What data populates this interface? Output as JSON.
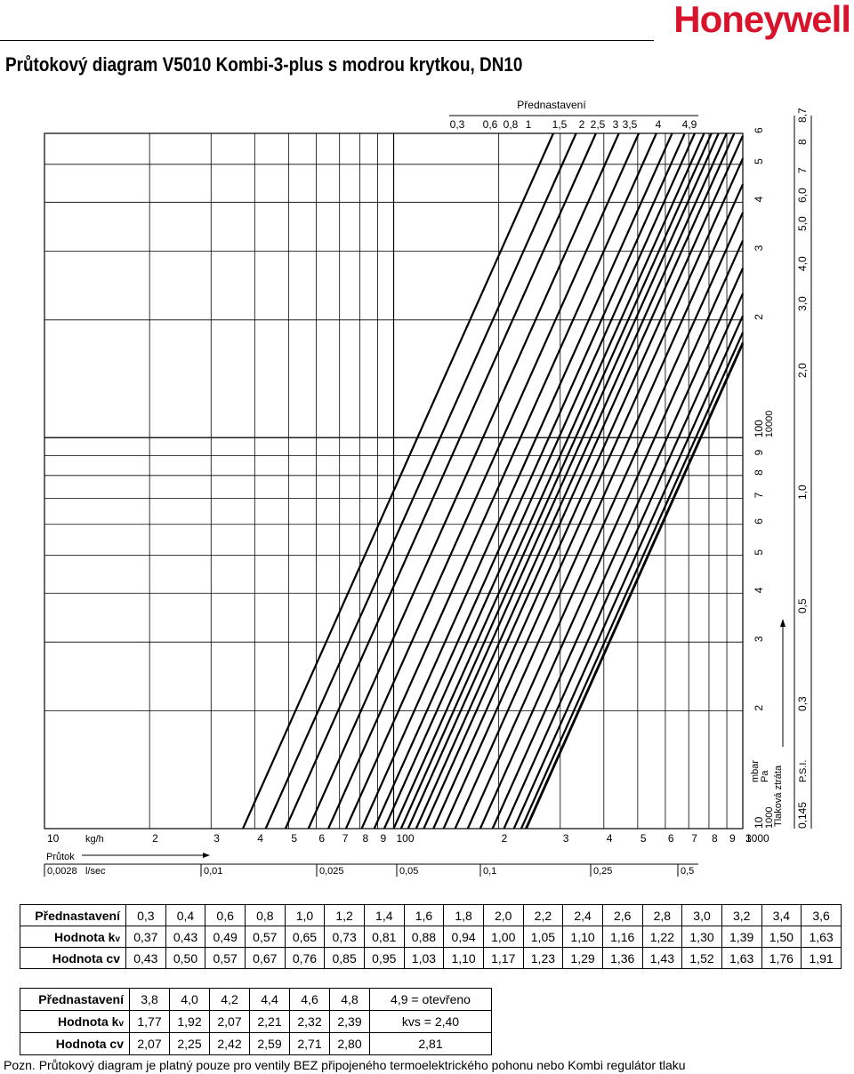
{
  "header": {
    "brand": "Honeywell",
    "title": "Průtokový diagram V5010 Kombi-3-plus s modrou krytkou, DN10"
  },
  "chart_data": {
    "type": "line",
    "title": "Průtokový diagram V5010 Kombi-3-plus s modrou krytkou, DN10",
    "top_label": "Přednastavení",
    "top_ticks": [
      "0,3",
      "0,6",
      "0,8",
      "1",
      "1,5",
      "2",
      "2,5",
      "3",
      "3,5",
      "4",
      "4,9"
    ],
    "xlabel": "Průtok",
    "ylabel": "Tlaková ztráta",
    "x_unit_1": "kg/h",
    "x_unit_2": "l/sec",
    "x_axis_kgh_ticks": [
      "10",
      "2",
      "3",
      "4",
      "5",
      "6",
      "7",
      "8",
      "9",
      "100",
      "2",
      "3",
      "4",
      "5",
      "6",
      "7",
      "8",
      "9",
      "1000",
      "3"
    ],
    "x_axis_ls_ticks": [
      "0,0028",
      "0,01",
      "0,025",
      "0,05",
      "0,1",
      "0,25",
      "0,5"
    ],
    "y_axis_mbar_ticks": [
      "10",
      "2",
      "3",
      "4",
      "5",
      "6",
      "7",
      "8",
      "9",
      "100",
      "2",
      "3",
      "4",
      "5",
      "6"
    ],
    "y_axis_pa_ticks": [
      "1000",
      "10000"
    ],
    "y_axis_psi_ticks": [
      "0,145",
      "0,3",
      "0,5",
      "1,0",
      "2,0",
      "3,0",
      "4,0",
      "5,0",
      "6,0",
      "7",
      "8",
      "8,7"
    ],
    "y_units": [
      "mbar",
      "Pa",
      "P.S.I."
    ],
    "x_range_kgh": [
      10,
      1000
    ],
    "y_range_mbar": [
      10,
      600
    ],
    "log_scale": true,
    "grid": true,
    "series": [
      {
        "name": "0,3",
        "kv": 0.37
      },
      {
        "name": "0,4",
        "kv": 0.43
      },
      {
        "name": "0,6",
        "kv": 0.49
      },
      {
        "name": "0,8",
        "kv": 0.57
      },
      {
        "name": "1,0",
        "kv": 0.65
      },
      {
        "name": "1,2",
        "kv": 0.73
      },
      {
        "name": "1,4",
        "kv": 0.81
      },
      {
        "name": "1,6",
        "kv": 0.88
      },
      {
        "name": "1,8",
        "kv": 0.94
      },
      {
        "name": "2,0",
        "kv": 1.0
      },
      {
        "name": "2,2",
        "kv": 1.05
      },
      {
        "name": "2,4",
        "kv": 1.1
      },
      {
        "name": "2,6",
        "kv": 1.16
      },
      {
        "name": "2,8",
        "kv": 1.22
      },
      {
        "name": "3,0",
        "kv": 1.3
      },
      {
        "name": "3,2",
        "kv": 1.39
      },
      {
        "name": "3,4",
        "kv": 1.5
      },
      {
        "name": "3,6",
        "kv": 1.63
      },
      {
        "name": "3,8",
        "kv": 1.77
      },
      {
        "name": "4,0",
        "kv": 1.92
      },
      {
        "name": "4,2",
        "kv": 2.07
      },
      {
        "name": "4,4",
        "kv": 2.21
      },
      {
        "name": "4,6",
        "kv": 2.32
      },
      {
        "name": "4,8",
        "kv": 2.39
      },
      {
        "name": "4,9",
        "kv": 2.4
      }
    ]
  },
  "table1": {
    "rows": [
      {
        "label": "Přednastavení",
        "values": [
          "0,3",
          "0,4",
          "0,6",
          "0,8",
          "1,0",
          "1,2",
          "1,4",
          "1,6",
          "1,8",
          "2,0",
          "2,2",
          "2,4",
          "2,6",
          "2,8",
          "3,0",
          "3,2",
          "3,4",
          "3,6"
        ]
      },
      {
        "label": "Hodnota k",
        "sub": "v",
        "values": [
          "0,37",
          "0,43",
          "0,49",
          "0,57",
          "0,65",
          "0,73",
          "0,81",
          "0,88",
          "0,94",
          "1,00",
          "1,05",
          "1,10",
          "1,16",
          "1,22",
          "1,30",
          "1,39",
          "1,50",
          "1,63"
        ]
      },
      {
        "label": "Hodnota cv",
        "values": [
          "0,43",
          "0,50",
          "0,57",
          "0,67",
          "0,76",
          "0,85",
          "0,95",
          "1,03",
          "1,10",
          "1,17",
          "1,23",
          "1,29",
          "1,36",
          "1,43",
          "1,52",
          "1,63",
          "1,76",
          "1,91"
        ]
      }
    ]
  },
  "table2": {
    "rows": [
      {
        "label": "Přednastavení",
        "values": [
          "3,8",
          "4,0",
          "4,2",
          "4,4",
          "4,6",
          "4,8"
        ],
        "last": "4,9 = otevřeno"
      },
      {
        "label": "Hodnota k",
        "sub": "v",
        "values": [
          "1,77",
          "1,92",
          "2,07",
          "2,21",
          "2,32",
          "2,39"
        ],
        "last": "kvs = 2,40"
      },
      {
        "label": "Hodnota cv",
        "values": [
          "2,07",
          "2,25",
          "2,42",
          "2,59",
          "2,71",
          "2,80"
        ],
        "last": "2,81"
      }
    ]
  },
  "note": "Pozn. Průtokový diagram je platný pouze pro ventily BEZ připojeného termoelektrického pohonu nebo Kombi regulátor tlaku"
}
